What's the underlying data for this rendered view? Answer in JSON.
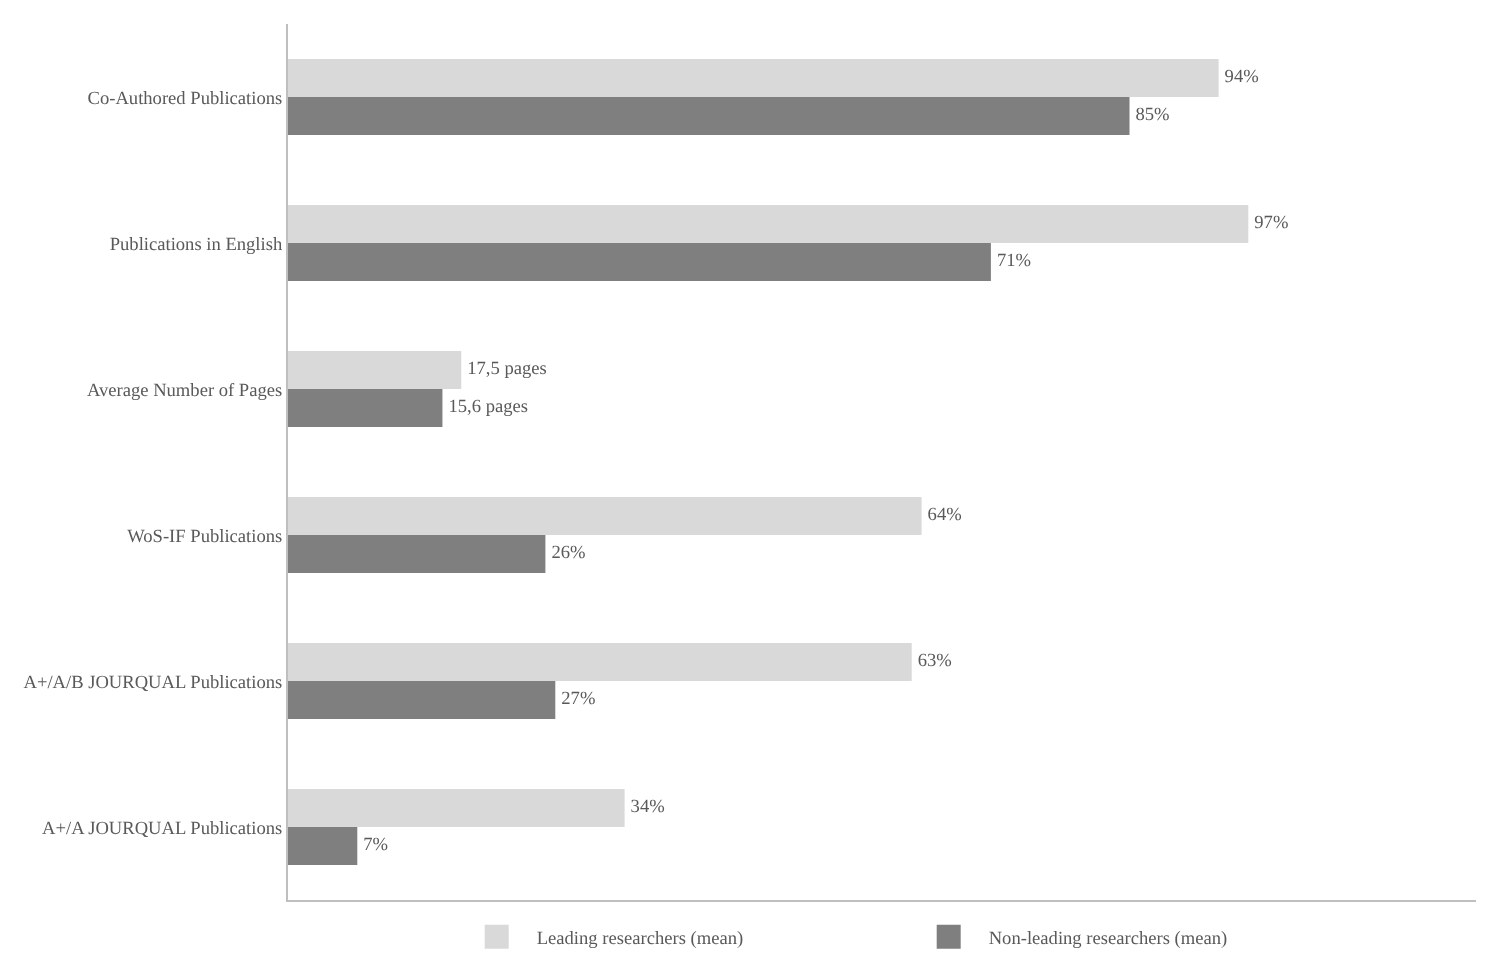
{
  "chart_data": {
    "type": "bar",
    "orientation": "horizontal",
    "categories": [
      "Co-Authored Publications",
      "Publications in English",
      "Average Number of Pages",
      "WoS-IF Publications",
      "A+/A/B JOURQUAL Publications",
      "A+/A JOURQUAL Publications"
    ],
    "series": [
      {
        "name": "Leading researchers (mean)",
        "color": "#d9d9d9",
        "values": [
          94,
          97,
          17.5,
          64,
          63,
          34
        ],
        "value_labels": [
          "94%",
          "97%",
          "17,5 pages",
          "64%",
          "63%",
          "34%"
        ]
      },
      {
        "name": "Non-leading researchers (mean)",
        "color": "#7f7f7f",
        "values": [
          85,
          71,
          15.6,
          26,
          27,
          7
        ],
        "value_labels": [
          "85%",
          "71%",
          "15,6 pages",
          "26%",
          "27%",
          "7%"
        ]
      }
    ],
    "xlim": [
      0,
      120
    ],
    "tick_labels": "y",
    "grid": false,
    "legend": "bottom"
  }
}
